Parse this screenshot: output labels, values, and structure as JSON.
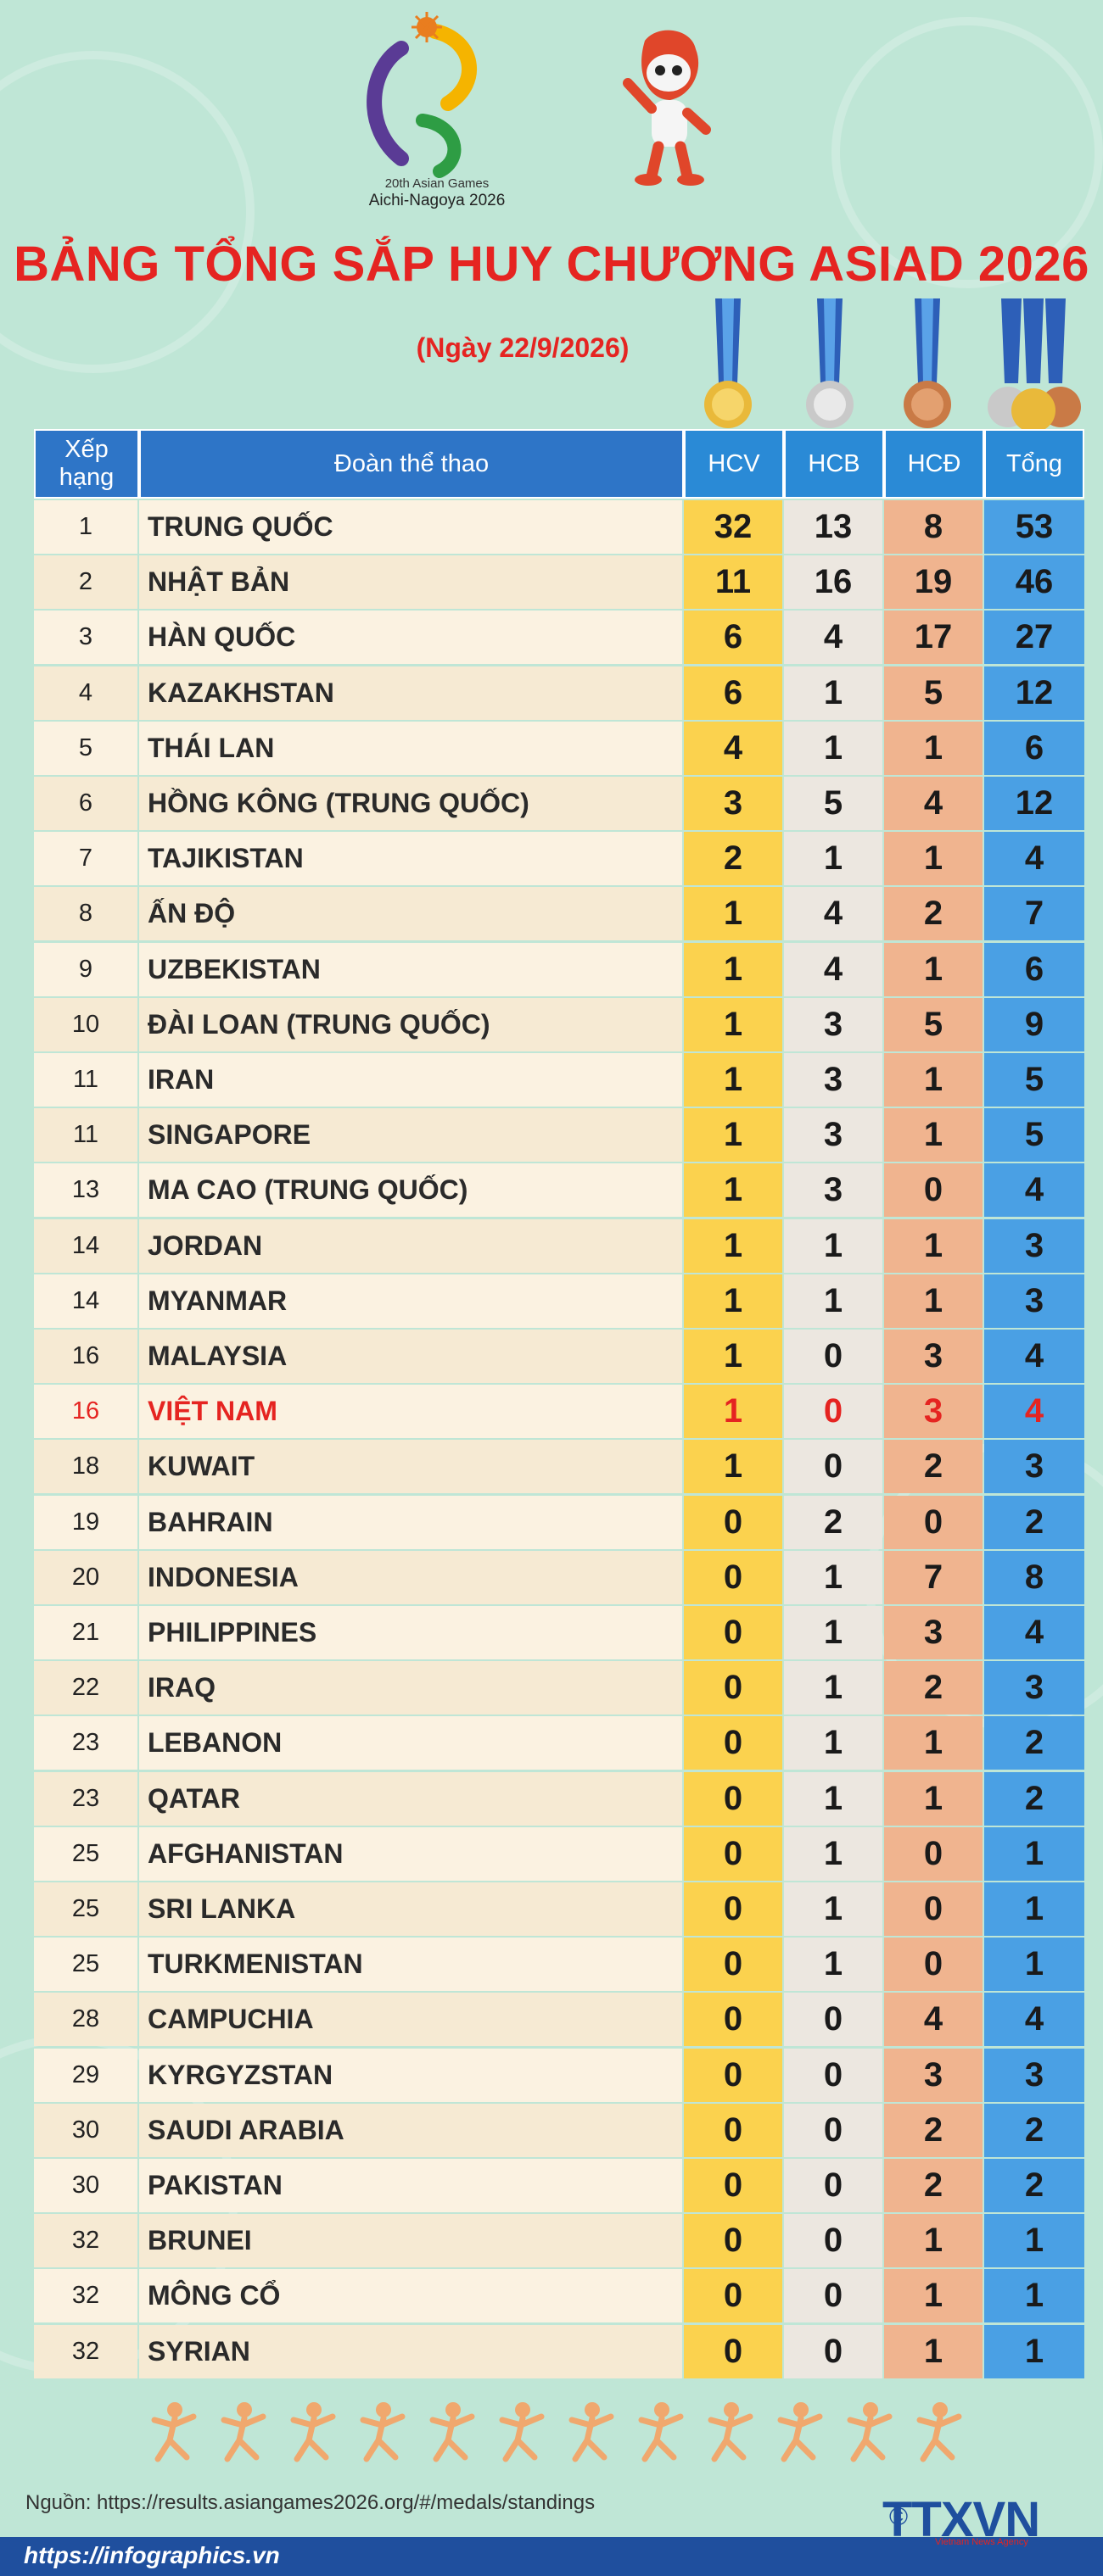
{
  "header": {
    "logo_line1": "20th Asian Games",
    "logo_line2": "Aichi-Nagoya 2026",
    "title": "BẢNG TỔNG SẮP HUY CHƯƠNG ASIAD 2026",
    "subtitle": "(Ngày 22/9/2026)"
  },
  "columns": {
    "rank": "Xếp hạng",
    "team": "Đoàn thể thao",
    "gold": "HCV",
    "silver": "HCB",
    "bronze": "HCĐ",
    "total": "Tổng"
  },
  "colors": {
    "title": "#e52421",
    "header_bg": "#2e75c7",
    "gold_col": "#fbd24e",
    "silver_col": "#ece7e0",
    "bronze_col": "#f0b48f",
    "total_col": "#4aa0e4",
    "highlight": "#e52421"
  },
  "rows": [
    {
      "rank": "1",
      "team": "TRUNG QUỐC",
      "gold": "32",
      "silver": "13",
      "bronze": "8",
      "total": "53"
    },
    {
      "rank": "2",
      "team": "NHẬT BẢN",
      "gold": "11",
      "silver": "16",
      "bronze": "19",
      "total": "46"
    },
    {
      "rank": "3",
      "team": "HÀN QUỐC",
      "gold": "6",
      "silver": "4",
      "bronze": "17",
      "total": "27"
    },
    {
      "rank": "4",
      "team": "KAZAKHSTAN",
      "gold": "6",
      "silver": "1",
      "bronze": "5",
      "total": "12"
    },
    {
      "rank": "5",
      "team": "THÁI LAN",
      "gold": "4",
      "silver": "1",
      "bronze": "1",
      "total": "6"
    },
    {
      "rank": "6",
      "team": "HỒNG KÔNG (TRUNG QUỐC)",
      "gold": "3",
      "silver": "5",
      "bronze": "4",
      "total": "12"
    },
    {
      "rank": "7",
      "team": "TAJIKISTAN",
      "gold": "2",
      "silver": "1",
      "bronze": "1",
      "total": "4"
    },
    {
      "rank": "8",
      "team": "ẤN ĐỘ",
      "gold": "1",
      "silver": "4",
      "bronze": "2",
      "total": "7"
    },
    {
      "rank": "9",
      "team": "UZBEKISTAN",
      "gold": "1",
      "silver": "4",
      "bronze": "1",
      "total": "6"
    },
    {
      "rank": "10",
      "team": "ĐÀI LOAN (TRUNG QUỐC)",
      "gold": "1",
      "silver": "3",
      "bronze": "5",
      "total": "9"
    },
    {
      "rank": "11",
      "team": "IRAN",
      "gold": "1",
      "silver": "3",
      "bronze": "1",
      "total": "5"
    },
    {
      "rank": "11",
      "team": "SINGAPORE",
      "gold": "1",
      "silver": "3",
      "bronze": "1",
      "total": "5"
    },
    {
      "rank": "13",
      "team": "MA CAO (TRUNG QUỐC)",
      "gold": "1",
      "silver": "3",
      "bronze": "0",
      "total": "4"
    },
    {
      "rank": "14",
      "team": "JORDAN",
      "gold": "1",
      "silver": "1",
      "bronze": "1",
      "total": "3"
    },
    {
      "rank": "14",
      "team": "MYANMAR",
      "gold": "1",
      "silver": "1",
      "bronze": "1",
      "total": "3"
    },
    {
      "rank": "16",
      "team": "MALAYSIA",
      "gold": "1",
      "silver": "0",
      "bronze": "3",
      "total": "4"
    },
    {
      "rank": "16",
      "team": "VIỆT NAM",
      "gold": "1",
      "silver": "0",
      "bronze": "3",
      "total": "4",
      "highlight": true
    },
    {
      "rank": "18",
      "team": "KUWAIT",
      "gold": "1",
      "silver": "0",
      "bronze": "2",
      "total": "3"
    },
    {
      "rank": "19",
      "team": "BAHRAIN",
      "gold": "0",
      "silver": "2",
      "bronze": "0",
      "total": "2"
    },
    {
      "rank": "20",
      "team": "INDONESIA",
      "gold": "0",
      "silver": "1",
      "bronze": "7",
      "total": "8"
    },
    {
      "rank": "21",
      "team": "PHILIPPINES",
      "gold": "0",
      "silver": "1",
      "bronze": "3",
      "total": "4"
    },
    {
      "rank": "22",
      "team": "IRAQ",
      "gold": "0",
      "silver": "1",
      "bronze": "2",
      "total": "3"
    },
    {
      "rank": "23",
      "team": "LEBANON",
      "gold": "0",
      "silver": "1",
      "bronze": "1",
      "total": "2"
    },
    {
      "rank": "23",
      "team": "QATAR",
      "gold": "0",
      "silver": "1",
      "bronze": "1",
      "total": "2"
    },
    {
      "rank": "25",
      "team": "AFGHANISTAN",
      "gold": "0",
      "silver": "1",
      "bronze": "0",
      "total": "1"
    },
    {
      "rank": "25",
      "team": "SRI LANKA",
      "gold": "0",
      "silver": "1",
      "bronze": "0",
      "total": "1"
    },
    {
      "rank": "25",
      "team": "TURKMENISTAN",
      "gold": "0",
      "silver": "1",
      "bronze": "0",
      "total": "1"
    },
    {
      "rank": "28",
      "team": "CAMPUCHIA",
      "gold": "0",
      "silver": "0",
      "bronze": "4",
      "total": "4"
    },
    {
      "rank": "29",
      "team": "KYRGYZSTAN",
      "gold": "0",
      "silver": "0",
      "bronze": "3",
      "total": "3"
    },
    {
      "rank": "30",
      "team": "SAUDI ARABIA",
      "gold": "0",
      "silver": "0",
      "bronze": "2",
      "total": "2"
    },
    {
      "rank": "30",
      "team": "PAKISTAN",
      "gold": "0",
      "silver": "0",
      "bronze": "2",
      "total": "2"
    },
    {
      "rank": "32",
      "team": "BRUNEI",
      "gold": "0",
      "silver": "0",
      "bronze": "1",
      "total": "1"
    },
    {
      "rank": "32",
      "team": "MÔNG CỔ",
      "gold": "0",
      "silver": "0",
      "bronze": "1",
      "total": "1"
    },
    {
      "rank": "32",
      "team": "SYRIAN",
      "gold": "0",
      "silver": "0",
      "bronze": "1",
      "total": "1"
    }
  ],
  "footer": {
    "source": "Nguồn: https://results.asiangames2026.org/#/medals/standings",
    "brand": "TTXVN",
    "brand_sub": "Vietnam News Agency",
    "url": "https://infographics.vn",
    "sport_icons": [
      "weightlifting-icon",
      "cycling-icon",
      "gymnastics-icon",
      "swimming-icon",
      "rowing-icon",
      "judo-icon",
      "diving-icon",
      "football-icon",
      "tennis-icon",
      "volleyball-icon",
      "running-icon",
      "shooting-icon"
    ]
  }
}
